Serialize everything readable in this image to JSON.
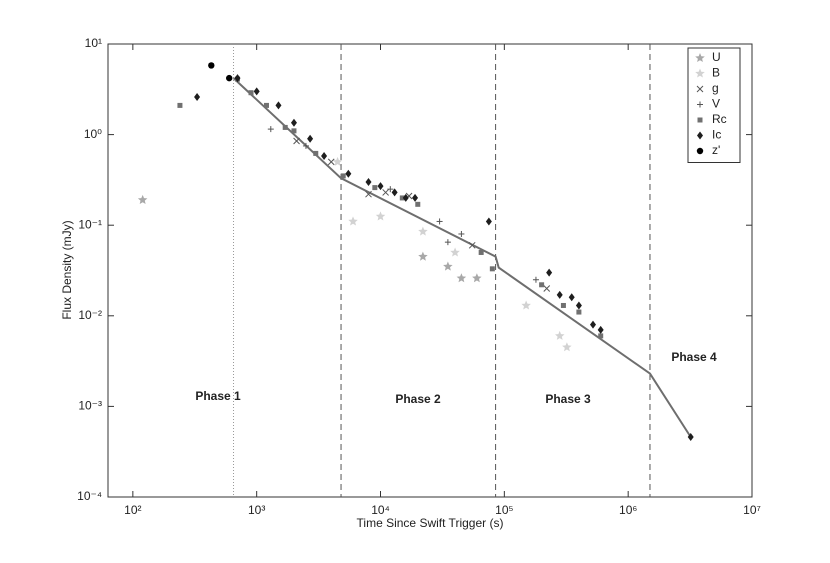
{
  "chart_data": {
    "type": "scatter",
    "x_label": "Time Since Swift Trigger (s)",
    "y_label": "Flux Density (mJy)",
    "xscale": "log",
    "yscale": "log",
    "xlim": [
      63,
      10000000
    ],
    "ylim": [
      0.0001,
      10
    ],
    "xticks": [
      {
        "value": 100,
        "label": "10²"
      },
      {
        "value": 1000,
        "label": "10³"
      },
      {
        "value": 10000,
        "label": "10⁴"
      },
      {
        "value": 100000,
        "label": "10⁵"
      },
      {
        "value": 1000000,
        "label": "10⁶"
      },
      {
        "value": 10000000,
        "label": "10⁷"
      }
    ],
    "yticks": [
      {
        "value": 0.0001,
        "label": "10⁻⁴"
      },
      {
        "value": 0.001,
        "label": "10⁻³"
      },
      {
        "value": 0.01,
        "label": "10⁻²"
      },
      {
        "value": 0.1,
        "label": "10⁻¹"
      },
      {
        "value": 1,
        "label": "10⁰"
      },
      {
        "value": 10,
        "label": "10¹"
      }
    ],
    "legend_position": "upper right",
    "series": [
      {
        "name": "U",
        "marker": "star",
        "color": "#a8a8a8",
        "x": [
          120,
          22000,
          35000,
          45000,
          60000
        ],
        "values": [
          0.19,
          0.045,
          0.035,
          0.026,
          0.026
        ]
      },
      {
        "name": "B",
        "marker": "star",
        "color": "#d2d2d2",
        "x": [
          4500,
          6000,
          10000,
          22000,
          40000,
          150000,
          280000,
          320000
        ],
        "values": [
          0.5,
          0.11,
          0.125,
          0.085,
          0.05,
          0.013,
          0.006,
          0.0045
        ]
      },
      {
        "name": "g",
        "marker": "x",
        "color": "#555555",
        "x": [
          2100,
          4000,
          8000,
          11000,
          17000,
          55000,
          220000
        ],
        "values": [
          0.85,
          0.5,
          0.22,
          0.23,
          0.21,
          0.06,
          0.02
        ]
      },
      {
        "name": "V",
        "marker": "plus",
        "color": "#555555",
        "x": [
          1300,
          2500,
          12000,
          30000,
          35000,
          45000,
          180000
        ],
        "values": [
          1.15,
          0.75,
          0.25,
          0.11,
          0.065,
          0.08,
          0.025
        ]
      },
      {
        "name": "Rc",
        "marker": "square",
        "color": "#707070",
        "x": [
          240,
          700,
          900,
          1200,
          1700,
          2000,
          3000,
          5000,
          9000,
          15000,
          20000,
          65000,
          80000,
          200000,
          300000,
          400000,
          600000
        ],
        "values": [
          2.1,
          4.1,
          2.9,
          2.1,
          1.2,
          1.1,
          0.62,
          0.35,
          0.26,
          0.2,
          0.17,
          0.05,
          0.033,
          0.022,
          0.013,
          0.011,
          0.006
        ]
      },
      {
        "name": "Ic",
        "marker": "diamond",
        "color": "#1e1e1e",
        "x": [
          330,
          700,
          1000,
          1500,
          2000,
          2700,
          3500,
          5500,
          8000,
          10000,
          13000,
          16000,
          19000,
          75000,
          230000,
          280000,
          350000,
          400000,
          520000,
          600000,
          3200000
        ],
        "values": [
          2.6,
          4.2,
          3.0,
          2.1,
          1.35,
          0.9,
          0.58,
          0.37,
          0.3,
          0.27,
          0.23,
          0.2,
          0.2,
          0.11,
          0.03,
          0.017,
          0.016,
          0.013,
          0.008,
          0.007,
          0.00046
        ]
      },
      {
        "name": "z'",
        "marker": "circle",
        "color": "#000000",
        "x": [
          430,
          600
        ],
        "values": [
          5.8,
          4.2
        ]
      }
    ],
    "model": {
      "color": "#6e6e6e",
      "x": [
        650,
        4800,
        85000,
        90000,
        1500000,
        3200000
      ],
      "values": [
        4.2,
        0.33,
        0.045,
        0.034,
        0.0023,
        0.00046
      ]
    },
    "dotted_line": 650,
    "phase_boundaries": [
      4800,
      85000,
      1500000
    ],
    "annotations": [
      "Phase 1",
      "Phase 2",
      "Phase 3",
      "Phase 4"
    ]
  }
}
